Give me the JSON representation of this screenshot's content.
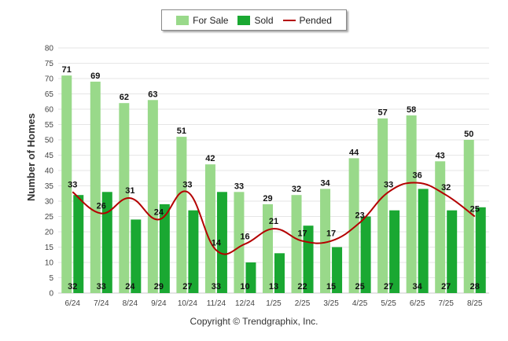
{
  "legend": {
    "for_sale": "For Sale",
    "sold": "Sold",
    "pended": "Pended"
  },
  "copyright": "Copyright © Trendgraphix, Inc.",
  "colors": {
    "for_sale": "#99d98a",
    "sold": "#1aa832",
    "pended": "#b40000",
    "grid": "#e6e6e6"
  },
  "chart_data": {
    "type": "bar",
    "title": "",
    "xlabel": "",
    "ylabel": "Number of Homes",
    "ylim": [
      0,
      80
    ],
    "yticks": [
      0,
      5,
      10,
      15,
      20,
      25,
      30,
      35,
      40,
      45,
      50,
      55,
      60,
      65,
      70,
      75,
      80
    ],
    "grid": true,
    "legend_position": "top-center",
    "categories": [
      "6/24",
      "7/24",
      "8/24",
      "9/24",
      "10/24",
      "11/24",
      "12/24",
      "1/25",
      "2/25",
      "3/25",
      "4/25",
      "5/25",
      "6/25",
      "7/25",
      "8/25"
    ],
    "series": [
      {
        "name": "For Sale",
        "type": "bar",
        "values": [
          71,
          69,
          62,
          63,
          51,
          42,
          33,
          29,
          32,
          34,
          44,
          57,
          58,
          43,
          50
        ]
      },
      {
        "name": "Sold",
        "type": "bar",
        "values": [
          32,
          33,
          24,
          29,
          27,
          33,
          10,
          13,
          22,
          15,
          25,
          27,
          34,
          27,
          28
        ]
      },
      {
        "name": "Pended",
        "type": "line",
        "values": [
          33,
          26,
          31,
          24,
          33,
          14,
          16,
          21,
          17,
          17,
          23,
          33,
          36,
          32,
          25
        ]
      }
    ]
  }
}
